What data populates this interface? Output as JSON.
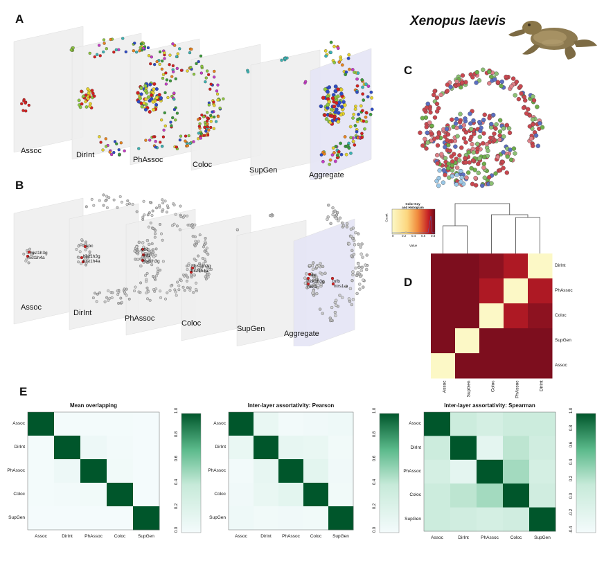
{
  "species": "Xenopus laevis",
  "panels": {
    "a": "A",
    "b": "B",
    "c": "C",
    "d": "D",
    "e": "E"
  },
  "layers": [
    "Assoc",
    "DirInt",
    "PhAssoc",
    "Coloc",
    "SupGen",
    "Aggregate"
  ],
  "gene_labels": {
    "assoc": [
      "hist1h3g",
      "hist1h4a"
    ],
    "dirint": [
      "ubc",
      "hist1h3g",
      "hist1h4a"
    ],
    "phassoc": [
      "ubc",
      "rnf1",
      "hist1h3g"
    ],
    "coloc": [
      "hist1h3g",
      "hist1h4a"
    ],
    "aggregate": [
      "ubc",
      "hist1h3g",
      "hist1",
      "tnfb",
      "ntrs1-a"
    ]
  },
  "color_key": {
    "title": "Color Key",
    "subtitle": "and Histogram",
    "ylabel": "Count",
    "xlabel": "Value",
    "ticks": [
      "0",
      "0.2",
      "0.4",
      "0.6",
      "0.8"
    ]
  },
  "dendro_heatmap": {
    "rows": [
      "DirInt",
      "PhAssoc",
      "Coloc",
      "SupGen",
      "Assoc"
    ],
    "cols": [
      "Assoc",
      "SupGen",
      "Coloc",
      "PhAssoc",
      "DirInt"
    ],
    "values": [
      [
        0.0,
        0.0,
        0.1,
        0.3,
        1.0
      ],
      [
        0.0,
        0.0,
        0.3,
        1.0,
        0.3
      ],
      [
        0.0,
        0.0,
        1.0,
        0.3,
        0.1
      ],
      [
        0.0,
        1.0,
        0.0,
        0.0,
        0.0
      ],
      [
        1.0,
        0.0,
        0.0,
        0.0,
        0.0
      ]
    ],
    "colors": {
      "low": "#7d0e1e",
      "high": "#fcf8c6"
    }
  },
  "chart_data": [
    {
      "type": "heatmap",
      "title": "Mean overlapping",
      "categories": [
        "Assoc",
        "DirInt",
        "PhAssoc",
        "Coloc",
        "SupGen"
      ],
      "values": [
        [
          1.0,
          0.01,
          0.01,
          0.01,
          0.0
        ],
        [
          0.01,
          1.0,
          0.06,
          0.02,
          0.0
        ],
        [
          0.01,
          0.06,
          1.0,
          0.03,
          0.0
        ],
        [
          0.01,
          0.02,
          0.03,
          1.0,
          0.0
        ],
        [
          0.0,
          0.0,
          0.0,
          0.0,
          1.0
        ]
      ],
      "colorbar_ticks": [
        "0.0",
        "0.2",
        "0.4",
        "0.6",
        "0.8",
        "1.0"
      ],
      "range": [
        0,
        1
      ]
    },
    {
      "type": "heatmap",
      "title": "Inter-layer assortativity: Pearson",
      "categories": [
        "Assoc",
        "DirInt",
        "PhAssoc",
        "Coloc",
        "SupGen"
      ],
      "values": [
        [
          1.0,
          0.1,
          0.02,
          0.04,
          0.05
        ],
        [
          0.1,
          1.0,
          0.12,
          0.1,
          0.03
        ],
        [
          0.02,
          0.12,
          1.0,
          0.15,
          0.04
        ],
        [
          0.04,
          0.1,
          0.15,
          1.0,
          0.03
        ],
        [
          0.05,
          0.03,
          0.04,
          0.03,
          1.0
        ]
      ],
      "colorbar_ticks": [
        "0.0",
        "0.2",
        "0.4",
        "0.6",
        "0.8",
        "1.0"
      ],
      "range": [
        0,
        1
      ]
    },
    {
      "type": "heatmap",
      "title": "Inter-layer assortativity: Spearman",
      "categories": [
        "Assoc",
        "DirInt",
        "PhAssoc",
        "Coloc",
        "SupGen"
      ],
      "values": [
        [
          1.0,
          0.1,
          0.0,
          0.1,
          0.1
        ],
        [
          0.1,
          1.0,
          -0.2,
          0.2,
          0.05
        ],
        [
          0.0,
          -0.2,
          1.0,
          0.3,
          0.0
        ],
        [
          0.1,
          0.2,
          0.3,
          1.0,
          0.05
        ],
        [
          0.1,
          0.05,
          0.0,
          0.05,
          1.0
        ]
      ],
      "colorbar_ticks": [
        "-0.4",
        "-0.2",
        "0.0",
        "0.2",
        "0.4",
        "0.6",
        "0.8",
        "1.0"
      ],
      "range": [
        -0.4,
        1
      ]
    }
  ]
}
